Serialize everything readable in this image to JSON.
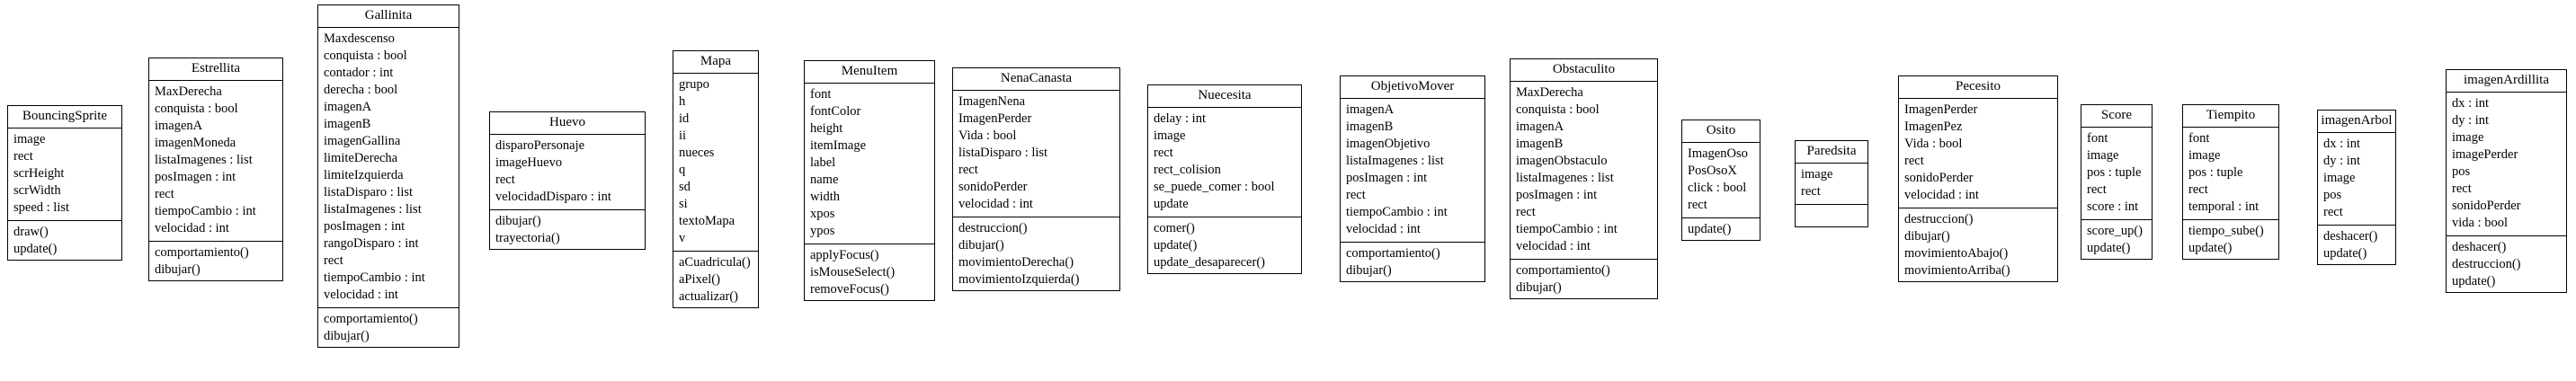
{
  "classes": [
    {
      "name": "BouncingSprite",
      "attributes": [
        "image",
        "rect",
        "scrHeight",
        "scrWidth",
        "speed : list"
      ],
      "methods": [
        "draw()",
        "update()"
      ]
    },
    {
      "name": "Estrellita",
      "attributes": [
        "MaxDerecha",
        "conquista : bool",
        "imagenA",
        "imagenMoneda",
        "listaImagenes : list",
        "posImagen : int",
        "rect",
        "tiempoCambio : int",
        "velocidad : int"
      ],
      "methods": [
        "comportamiento()",
        "dibujar()"
      ]
    },
    {
      "name": "Gallinita",
      "attributes": [
        "Maxdescenso",
        "conquista : bool",
        "contador : int",
        "derecha : bool",
        "imagenA",
        "imagenB",
        "imagenGallina",
        "limiteDerecha",
        "limiteIzquierda",
        "listaDisparo : list",
        "listaImagenes : list",
        "posImagen : int",
        "rangoDisparo : int",
        "rect",
        "tiempoCambio : int",
        "velocidad : int"
      ],
      "methods": [
        "comportamiento()",
        "dibujar()"
      ]
    },
    {
      "name": "Huevo",
      "attributes": [
        "disparoPersonaje",
        "imageHuevo",
        "rect",
        "velocidadDisparo : int"
      ],
      "methods": [
        "dibujar()",
        "trayectoria()"
      ]
    },
    {
      "name": "Mapa",
      "attributes": [
        "grupo",
        "h",
        "id",
        "ii",
        "nueces",
        "q",
        "sd",
        "si",
        "textoMapa",
        "v"
      ],
      "methods": [
        "aCuadricula()",
        "aPixel()",
        "actualizar()"
      ]
    },
    {
      "name": "MenuItem",
      "attributes": [
        "font",
        "fontColor",
        "height",
        "itemImage",
        "label",
        "name",
        "width",
        "xpos",
        "ypos"
      ],
      "methods": [
        "applyFocus()",
        "isMouseSelect()",
        "removeFocus()"
      ]
    },
    {
      "name": "NenaCanasta",
      "attributes": [
        "ImagenNena",
        "ImagenPerder",
        "Vida : bool",
        "listaDisparo : list",
        "rect",
        "sonidoPerder",
        "velocidad : int"
      ],
      "methods": [
        "destruccion()",
        "dibujar()",
        "movimientoDerecha()",
        "movimientoIzquierda()"
      ]
    },
    {
      "name": "Nuecesita",
      "attributes": [
        "delay : int",
        "image",
        "rect",
        "rect_colision",
        "se_puede_comer : bool",
        "update"
      ],
      "methods": [
        "comer()",
        "update()",
        "update_desaparecer()"
      ]
    },
    {
      "name": "ObjetivoMover",
      "attributes": [
        "imagenA",
        "imagenB",
        "imagenObjetivo",
        "listaImagenes : list",
        "posImagen : int",
        "rect",
        "tiempoCambio : int",
        "velocidad : int"
      ],
      "methods": [
        "comportamiento()",
        "dibujar()"
      ]
    },
    {
      "name": "Obstaculito",
      "attributes": [
        "MaxDerecha",
        "conquista : bool",
        "imagenA",
        "imagenB",
        "imagenObstaculo",
        "listaImagenes : list",
        "posImagen : int",
        "rect",
        "tiempoCambio : int",
        "velocidad : int"
      ],
      "methods": [
        "comportamiento()",
        "dibujar()"
      ]
    },
    {
      "name": "Osito",
      "attributes": [
        "ImagenOso",
        "PosOsoX",
        "click : bool",
        "rect"
      ],
      "methods": [
        "update()"
      ]
    },
    {
      "name": "Paredsita",
      "attributes": [
        "image",
        "rect"
      ],
      "methods": []
    },
    {
      "name": "Pecesito",
      "attributes": [
        "ImagenPerder",
        "ImagenPez",
        "Vida : bool",
        "rect",
        "sonidoPerder",
        "velocidad : int"
      ],
      "methods": [
        "destruccion()",
        "dibujar()",
        "movimientoAbajo()",
        "movimientoArriba()"
      ]
    },
    {
      "name": "Score",
      "attributes": [
        "font",
        "image",
        "pos : tuple",
        "rect",
        "score : int"
      ],
      "methods": [
        "score_up()",
        "update()"
      ]
    },
    {
      "name": "Tiempito",
      "attributes": [
        "font",
        "image",
        "pos : tuple",
        "rect",
        "temporal : int"
      ],
      "methods": [
        "tiempo_sube()",
        "update()"
      ]
    },
    {
      "name": "imagenArbol",
      "attributes": [
        "dx : int",
        "dy : int",
        "image",
        "pos",
        "rect"
      ],
      "methods": [
        "deshacer()",
        "update()"
      ]
    },
    {
      "name": "imagenArdillita",
      "attributes": [
        "dx : int",
        "dy : int",
        "image",
        "imagePerder",
        "pos",
        "rect",
        "sonidoPerder",
        "vida : bool"
      ],
      "methods": [
        "deshacer()",
        "destruccion()",
        "update()"
      ]
    }
  ]
}
